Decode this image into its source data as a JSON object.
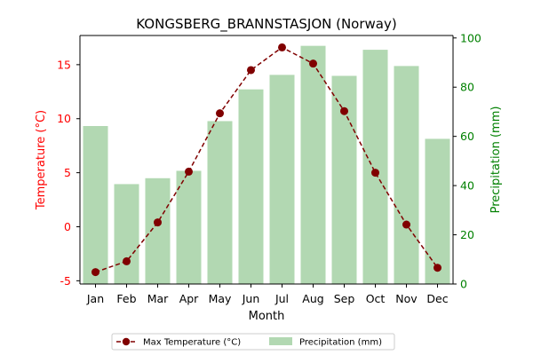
{
  "chart_data": {
    "type": "bar",
    "title": "KONGSBERG_BRANNSTASJON (Norway)",
    "xlabel": "Month",
    "ylabel_left": "Temperature (°C)",
    "ylabel_right": "Precipitation (mm)",
    "categories": [
      "Jan",
      "Feb",
      "Mar",
      "Apr",
      "May",
      "Jun",
      "Jul",
      "Aug",
      "Sep",
      "Oct",
      "Nov",
      "Dec"
    ],
    "ylim_left": [
      -5.3,
      17.7
    ],
    "ylim_right": [
      0,
      101
    ],
    "yticks_left": [
      -5,
      0,
      5,
      10,
      15
    ],
    "yticks_right": [
      0,
      20,
      40,
      60,
      80,
      100
    ],
    "grid": false,
    "legend_position": "bottom-center",
    "series": [
      {
        "name": "Max Temperature (°C)",
        "type": "line",
        "axis": "left",
        "style": "dashed with circle markers",
        "color": "#800000",
        "values": [
          -4.2,
          -3.2,
          0.4,
          5.1,
          10.5,
          14.5,
          16.6,
          15.1,
          10.7,
          5.0,
          0.2,
          -3.8
        ]
      },
      {
        "name": "Precipitation (mm)",
        "type": "bar",
        "axis": "right",
        "color": "#b2d8b2",
        "values": [
          64.2,
          40.6,
          43.0,
          46.0,
          66.2,
          79.1,
          85.0,
          96.8,
          84.6,
          95.2,
          88.6,
          59.0
        ]
      }
    ],
    "colors": {
      "left_axis": "#ff0000",
      "right_axis": "#008000"
    }
  }
}
